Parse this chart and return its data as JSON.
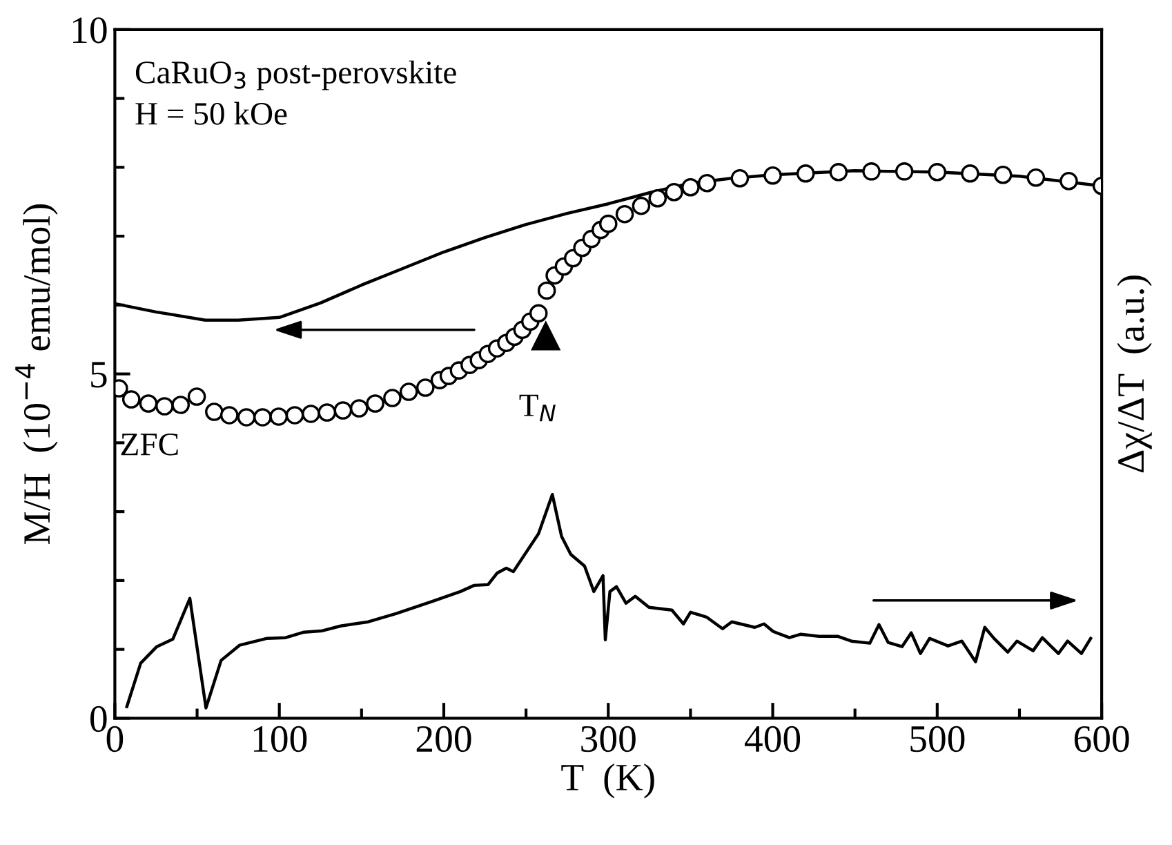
{
  "chart_data": {
    "type": "line",
    "xlabel": "T  (K)",
    "ylabel": "M/H  (10$^{−4}$ emu/mol)",
    "y2label": "Δχ/ΔT  (a.u.)",
    "annotations": [
      "CaRuO$_{3}$ post-perovskite",
      "H = 50 kOe",
      "ZFC",
      {
        "text": "T$_{N}$",
        "x": 262,
        "y": 5.55
      }
    ],
    "xlim": [
      0,
      600
    ],
    "ylim": [
      0,
      10
    ],
    "xticks": [
      0,
      {
        "value": 50,
        "label": null
      },
      100,
      {
        "value": 150,
        "label": null
      },
      200,
      {
        "value": 250,
        "label": null
      },
      300,
      {
        "value": 350,
        "label": null
      },
      400,
      {
        "value": 450,
        "label": null
      },
      500,
      {
        "value": 550,
        "label": null
      },
      600
    ],
    "yticks": [
      0,
      {
        "value": 1,
        "label": null
      },
      {
        "value": 2,
        "label": null
      },
      {
        "value": 3,
        "label": null
      },
      {
        "value": 4,
        "label": null
      },
      5,
      {
        "value": 6,
        "label": null
      },
      {
        "value": 7,
        "label": null
      },
      {
        "value": 8,
        "label": null
      },
      {
        "value": 9,
        "label": null
      },
      10
    ],
    "grid": false,
    "series": [
      {
        "color": "#000000",
        "marker": "none",
        "line_style": "solid",
        "x": [
          0,
          25,
          55,
          75,
          100,
          125,
          150,
          175,
          200,
          225,
          250,
          275,
          300,
          325,
          350,
          375,
          400,
          450,
          500,
          550,
          600
        ],
        "values": [
          6.02,
          5.9,
          5.78,
          5.78,
          5.82,
          6.03,
          6.29,
          6.53,
          6.77,
          6.98,
          7.17,
          7.33,
          7.47,
          7.63,
          7.77,
          7.84,
          7.89,
          7.95,
          7.93,
          7.87,
          7.73
        ]
      },
      {
        "type": "scatter",
        "color": "#000000",
        "marker": "circle",
        "x": [
          2.5,
          10,
          20.4,
          30.2,
          40,
          49.8,
          60.4,
          69.6,
          80,
          89.8,
          99.6,
          109.4,
          119.2,
          129,
          138.7,
          148.5,
          158.3,
          168.7,
          178.7,
          188.8,
          197.5,
          203,
          209.2,
          215.7,
          221.3,
          226.8,
          232.4,
          238,
          243,
          247.8,
          252.6,
          257.6,
          262.6,
          267.4,
          273,
          278.6,
          284.2,
          289.8,
          295.4,
          300,
          310,
          320,
          330,
          340,
          350,
          360,
          380,
          400,
          420,
          440,
          460,
          480,
          500,
          520,
          540,
          560,
          580,
          600
        ],
        "values": [
          4.79,
          4.63,
          4.57,
          4.53,
          4.55,
          4.67,
          4.45,
          4.4,
          4.37,
          4.37,
          4.38,
          4.4,
          4.42,
          4.44,
          4.47,
          4.5,
          4.57,
          4.65,
          4.74,
          4.8,
          4.91,
          4.97,
          5.05,
          5.13,
          5.2,
          5.29,
          5.37,
          5.45,
          5.54,
          5.64,
          5.76,
          5.88,
          6.21,
          6.43,
          6.56,
          6.68,
          6.83,
          6.96,
          7.09,
          7.18,
          7.32,
          7.44,
          7.55,
          7.64,
          7.71,
          7.77,
          7.84,
          7.88,
          7.91,
          7.93,
          7.94,
          7.94,
          7.93,
          7.91,
          7.89,
          7.85,
          7.8,
          7.73
        ]
      },
      {
        "color": "#000000",
        "marker": "none",
        "line_style": "solid",
        "x": [
          7.3,
          15.7,
          25.5,
          35.3,
          45.6,
          55.4,
          64.6,
          75.8,
          92.6,
          103.8,
          115,
          126.2,
          137.3,
          154.1,
          170.9,
          193.3,
          210.1,
          218.5,
          226.9,
          232.5,
          238,
          242.3,
          257.6,
          266,
          271.6,
          277.2,
          285.6,
          291.2,
          296.8,
          298.2,
          301,
          305,
          310.8,
          316.4,
          324.8,
          338.7,
          345.7,
          350,
          359.7,
          369.5,
          375.1,
          389.1,
          394.7,
          400.3,
          410.1,
          417.1,
          428.2,
          439.4,
          447.8,
          459,
          464.6,
          470.2,
          478.6,
          484.2,
          489.8,
          495.4,
          506.6,
          515,
          523.3,
          528.9,
          534.5,
          542.9,
          548.5,
          558.3,
          563.9,
          573.7,
          579.3,
          587.7,
          593.3
        ],
        "values": [
          0.17,
          0.8,
          1.04,
          1.15,
          1.74,
          0.15,
          0.84,
          1.06,
          1.16,
          1.17,
          1.25,
          1.27,
          1.34,
          1.4,
          1.52,
          1.7,
          1.84,
          1.93,
          1.94,
          2.11,
          2.18,
          2.13,
          2.68,
          3.25,
          2.64,
          2.38,
          2.21,
          1.84,
          2.07,
          1.14,
          1.84,
          1.91,
          1.67,
          1.77,
          1.61,
          1.57,
          1.37,
          1.54,
          1.47,
          1.3,
          1.4,
          1.32,
          1.37,
          1.26,
          1.17,
          1.22,
          1.19,
          1.19,
          1.12,
          1.09,
          1.36,
          1.1,
          1.04,
          1.24,
          0.94,
          1.16,
          1.05,
          1.12,
          0.82,
          1.32,
          1.16,
          0.96,
          1.12,
          0.98,
          1.17,
          0.94,
          1.12,
          0.94,
          1.16
        ]
      }
    ]
  }
}
